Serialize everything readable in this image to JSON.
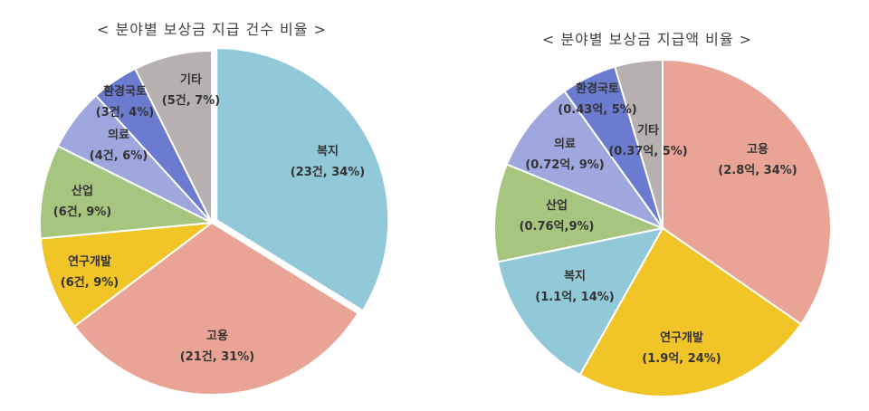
{
  "chart_data": [
    {
      "type": "pie",
      "title": "< 분야별 보상금 지급 건수 비율 >",
      "categories": [
        "복지",
        "고용",
        "연구개발",
        "산업",
        "의료",
        "환경국토",
        "기타"
      ],
      "values": [
        23,
        21,
        6,
        6,
        4,
        3,
        5
      ],
      "percents": [
        34,
        31,
        9,
        9,
        6,
        4,
        7
      ],
      "colors": [
        "#92c9d9",
        "#eaa495",
        "#f1c428",
        "#a6c57e",
        "#9ea7de",
        "#6a7bd0",
        "#b7b0b1"
      ],
      "labels": [
        {
          "name": "복지",
          "value": "(23건, 34%)"
        },
        {
          "name": "고용",
          "value": "(21건, 31%)"
        },
        {
          "name": "연구개발",
          "value": "(6건, 9%)"
        },
        {
          "name": "산업",
          "value": "(6건, 9%)"
        },
        {
          "name": "의료",
          "value": "(4건, 6%)"
        },
        {
          "name": "환경국토",
          "value": "(3건, 4%)"
        },
        {
          "name": "기타",
          "value": "(5건, 7%)"
        }
      ],
      "exploded": "복지"
    },
    {
      "type": "pie",
      "title": "< 분야별 보상금 지급액 비율 >",
      "categories": [
        "고용",
        "연구개발",
        "복지",
        "산업",
        "의료",
        "환경국토",
        "기타"
      ],
      "values": [
        2.8,
        1.9,
        1.1,
        0.76,
        0.72,
        0.43,
        0.37
      ],
      "percents": [
        34,
        24,
        14,
        9,
        9,
        5,
        5
      ],
      "colors": [
        "#eaa495",
        "#f1c428",
        "#92c9d9",
        "#a6c57e",
        "#9ea7de",
        "#6a7bd0",
        "#b7b0b1"
      ],
      "labels": [
        {
          "name": "고용",
          "value": "(2.8억, 34%)"
        },
        {
          "name": "연구개발",
          "value": "(1.9억, 24%)"
        },
        {
          "name": "복지",
          "value": "(1.1억, 14%)"
        },
        {
          "name": "산업",
          "value": "(0.76억,9%)"
        },
        {
          "name": "의료",
          "value": "(0.72억, 9%)"
        },
        {
          "name": "환경국토",
          "value": "(0.43억, 5%)"
        },
        {
          "name": "기타",
          "value": "(0.37억, 5%)"
        }
      ]
    }
  ]
}
